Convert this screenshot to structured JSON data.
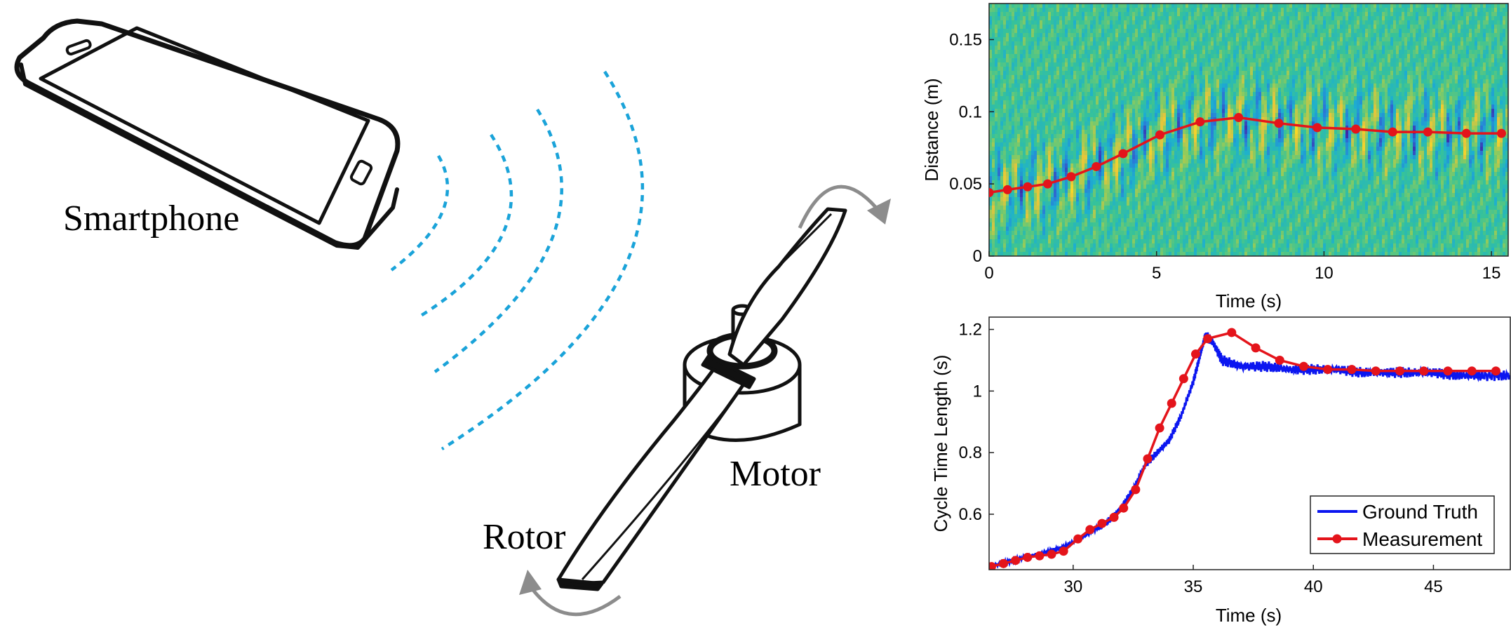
{
  "illustration": {
    "labels": {
      "smartphone": "Smartphone",
      "motor": "Motor",
      "rotor": "Rotor"
    },
    "wave_color": "#1aa3d9",
    "arrow_color": "#8c8c8c",
    "icons": [
      "smartphone-icon",
      "sound-wave-icon",
      "rotor-icon",
      "motor-icon",
      "rotation-arrow-icon"
    ]
  },
  "chart_data": [
    {
      "type": "heatmap",
      "title": "",
      "xlabel": "Time (s)",
      "ylabel": "Distance (m)",
      "xlim": [
        0,
        15.5
      ],
      "ylim": [
        0,
        0.175
      ],
      "xticks": [
        0,
        5,
        10,
        15
      ],
      "xtick_labels": [
        "0",
        "5",
        "10",
        "15"
      ],
      "yticks": [
        0,
        0.05,
        0.1,
        0.15
      ],
      "ytick_labels": [
        "0",
        "0.05",
        "0.1",
        "0.15"
      ],
      "colormap": [
        "#3e26a8",
        "#2a7bd8",
        "#1dafd0",
        "#38c397",
        "#94cb5a",
        "#e4c53c",
        "#f9d926"
      ],
      "overlay_series": {
        "name": "",
        "color": "#e4141b",
        "x": [
          0,
          0.55,
          1.15,
          1.75,
          2.45,
          3.2,
          4.0,
          5.1,
          6.3,
          7.45,
          8.65,
          9.8,
          10.95,
          12.05,
          13.1,
          14.25,
          15.3
        ],
        "y": [
          0.044,
          0.046,
          0.048,
          0.05,
          0.055,
          0.062,
          0.071,
          0.084,
          0.093,
          0.096,
          0.092,
          0.089,
          0.088,
          0.086,
          0.086,
          0.085,
          0.085
        ]
      }
    },
    {
      "type": "line",
      "title": "",
      "xlabel": "Time (s)",
      "ylabel": "Cycle Time Length (s)",
      "xlim": [
        26.5,
        48.2
      ],
      "ylim": [
        0.42,
        1.24
      ],
      "xticks": [
        30,
        35,
        40,
        45
      ],
      "xtick_labels": [
        "30",
        "35",
        "40",
        "45"
      ],
      "yticks": [
        0.6,
        0.8,
        1.0,
        1.2
      ],
      "ytick_labels": [
        "0.6",
        "0.8",
        "1",
        "1.2"
      ],
      "legend_position": "bottom-right",
      "series": [
        {
          "name": "Ground Truth",
          "color": "#0b16f0",
          "x": [
            26.5,
            27.5,
            28.5,
            29.5,
            30.5,
            31.5,
            32.0,
            32.5,
            33.0,
            33.5,
            34.0,
            34.5,
            35.0,
            35.3,
            35.5,
            35.8,
            36.2,
            37.0,
            38.0,
            39.0,
            40.0,
            41.0,
            42.0,
            43.0,
            44.0,
            45.0,
            46.0,
            47.0,
            48.2
          ],
          "y": [
            0.43,
            0.45,
            0.47,
            0.49,
            0.53,
            0.58,
            0.62,
            0.68,
            0.76,
            0.8,
            0.84,
            0.92,
            1.03,
            1.12,
            1.18,
            1.16,
            1.1,
            1.08,
            1.08,
            1.07,
            1.07,
            1.07,
            1.06,
            1.06,
            1.06,
            1.06,
            1.05,
            1.05,
            1.05
          ]
        },
        {
          "name": "Measurement",
          "color": "#e4141b",
          "x": [
            26.6,
            27.1,
            27.6,
            28.1,
            28.6,
            29.1,
            29.6,
            30.2,
            30.7,
            31.2,
            31.7,
            32.1,
            32.6,
            33.1,
            33.6,
            34.1,
            34.6,
            35.1,
            35.6,
            36.6,
            37.6,
            38.6,
            39.6,
            40.6,
            41.6,
            42.6,
            43.6,
            44.6,
            45.6,
            46.6,
            47.6
          ],
          "y": [
            0.43,
            0.44,
            0.45,
            0.46,
            0.465,
            0.47,
            0.48,
            0.52,
            0.55,
            0.57,
            0.59,
            0.62,
            0.68,
            0.78,
            0.88,
            0.96,
            1.04,
            1.12,
            1.17,
            1.19,
            1.14,
            1.1,
            1.08,
            1.07,
            1.07,
            1.065,
            1.065,
            1.065,
            1.065,
            1.065,
            1.065
          ]
        }
      ]
    }
  ]
}
